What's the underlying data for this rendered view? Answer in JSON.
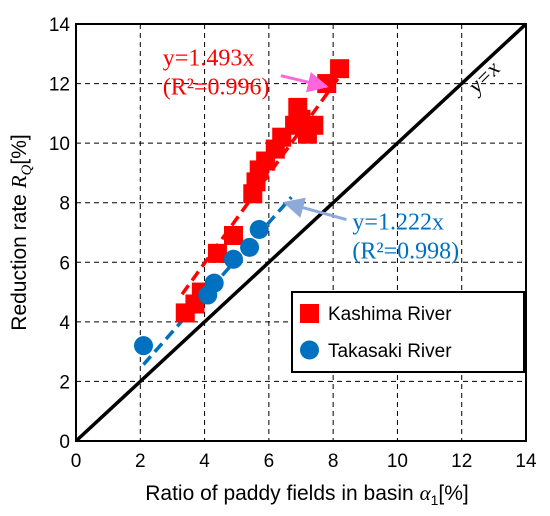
{
  "chart_data": {
    "type": "scatter",
    "xlabel_text": "Ratio of paddy fields in basin ",
    "xlabel_symbol": "α",
    "xlabel_sub": "1",
    "xlabel_unit": "[%]",
    "ylabel_text": "Reduction rate ",
    "ylabel_symbol": "R",
    "ylabel_sub": "Q",
    "ylabel_unit": "[%]",
    "xlim": [
      0,
      14
    ],
    "ylim": [
      0,
      14
    ],
    "xticks": [
      "0",
      "2",
      "4",
      "6",
      "8",
      "10",
      "12",
      "14"
    ],
    "yticks": [
      "0",
      "2",
      "4",
      "6",
      "8",
      "10",
      "12",
      "14"
    ],
    "grid": true,
    "legend_position": "lower-right",
    "identity_line": {
      "label": "y=x",
      "color": "#000000"
    },
    "series": [
      {
        "name": "Kashima River",
        "marker": "square",
        "color": "#ff0000",
        "fit": {
          "slope": 1.493,
          "line_x": [
            3.3,
            8.3
          ]
        },
        "annotation": {
          "equation": "y=1.493x",
          "r2": "(R²=0.996)",
          "text_at": [
            2.7,
            12.6
          ],
          "arrow_to": [
            7.8,
            11.9
          ]
        },
        "points": [
          [
            3.4,
            4.3
          ],
          [
            3.7,
            4.6
          ],
          [
            3.9,
            5.0
          ],
          [
            4.4,
            6.3
          ],
          [
            4.9,
            6.9
          ],
          [
            5.5,
            8.3
          ],
          [
            5.6,
            8.7
          ],
          [
            5.7,
            9.1
          ],
          [
            5.9,
            9.4
          ],
          [
            6.2,
            9.8
          ],
          [
            6.4,
            10.2
          ],
          [
            6.8,
            10.6
          ],
          [
            6.9,
            11.2
          ],
          [
            7.0,
            10.8
          ],
          [
            7.2,
            10.3
          ],
          [
            7.4,
            10.6
          ],
          [
            7.8,
            12.0
          ],
          [
            8.2,
            12.5
          ]
        ]
      },
      {
        "name": "Takasaki River",
        "marker": "circle",
        "color": "#0070c0",
        "fit": {
          "slope": 1.222,
          "line_x": [
            2.1,
            6.7
          ]
        },
        "annotation": {
          "equation": "y=1.222x",
          "r2": "(R²=0.998)",
          "text_at": [
            8.6,
            7.1
          ],
          "arrow_to": [
            6.5,
            8.0
          ]
        },
        "points": [
          [
            2.1,
            3.2
          ],
          [
            4.1,
            4.9
          ],
          [
            4.3,
            5.3
          ],
          [
            4.9,
            6.1
          ],
          [
            5.4,
            6.5
          ],
          [
            5.7,
            7.1
          ]
        ]
      }
    ]
  }
}
